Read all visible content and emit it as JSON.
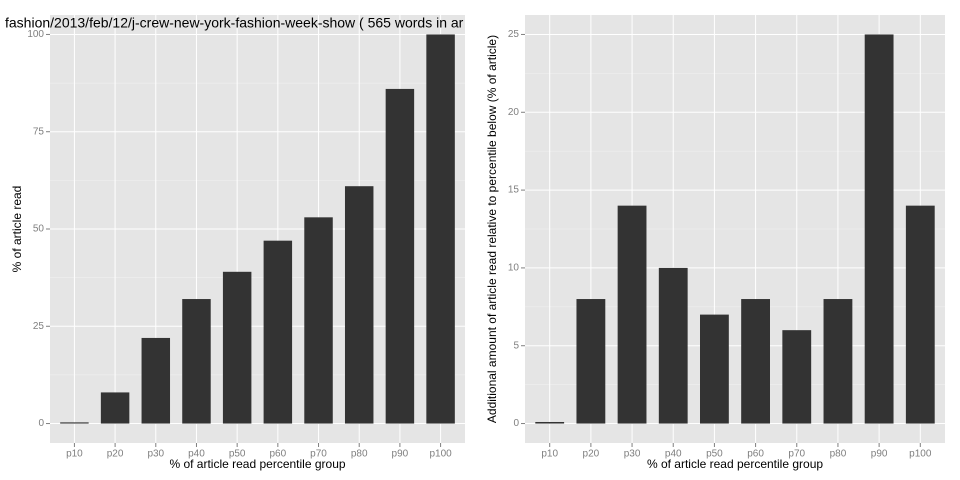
{
  "chart_data": [
    {
      "type": "bar",
      "title": "fashion/2013/feb/12/j-crew-new-york-fashion-week-show ( 565 words in ar",
      "x_label": "% of article read percentile group",
      "y_label": "% of article read",
      "categories": [
        "p10",
        "p20",
        "p30",
        "p40",
        "p50",
        "p60",
        "p70",
        "p80",
        "p90",
        "p100"
      ],
      "values": [
        0.3,
        8,
        22,
        32,
        39,
        47,
        53,
        61,
        86,
        100
      ],
      "color": "#333333",
      "ylim": [
        -5,
        105
      ],
      "yticks": [
        0,
        25,
        50,
        75,
        100
      ],
      "grid": true
    },
    {
      "type": "bar",
      "x_label": "% of article read percentile group",
      "y_label": "Additional amount of article read relative to percentile below (% of article)",
      "categories": [
        "p10",
        "p20",
        "p30",
        "p40",
        "p50",
        "p60",
        "p70",
        "p80",
        "p90",
        "p100"
      ],
      "values": [
        0.1,
        8,
        14,
        10,
        7,
        8,
        6,
        8,
        25,
        14
      ],
      "color": "#333333",
      "ylim": [
        -1.25,
        26.25
      ],
      "yticks": [
        0,
        5,
        10,
        15,
        20,
        25
      ],
      "grid": true
    }
  ]
}
